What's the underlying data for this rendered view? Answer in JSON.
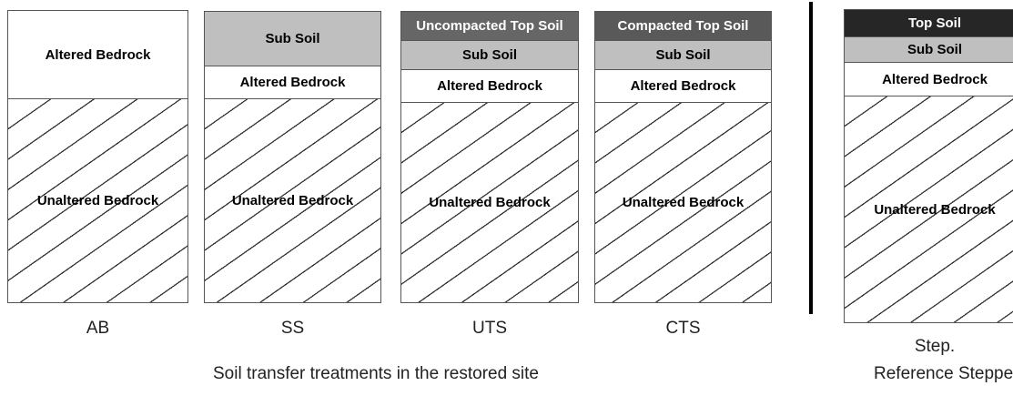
{
  "columns": [
    {
      "label": "AB",
      "layers": [
        "Altered Bedrock",
        "Unaltered Bedrock"
      ]
    },
    {
      "label": "SS",
      "layers": [
        "Sub Soil",
        "Altered Bedrock",
        "Unaltered Bedrock"
      ]
    },
    {
      "label": "UTS",
      "layers": [
        "Uncompacted Top Soil",
        "Sub Soil",
        "Altered Bedrock",
        "Unaltered Bedrock"
      ]
    },
    {
      "label": "CTS",
      "layers": [
        "Compacted Top Soil",
        "Sub Soil",
        "Altered Bedrock",
        "Unaltered Bedrock"
      ]
    },
    {
      "label": "Step.",
      "layers": [
        "Top Soil",
        "Sub Soil",
        "Altered Bedrock",
        "Unaltered Bedrock"
      ]
    }
  ],
  "captions": [
    "Soil transfer  treatments in the restored site",
    "Reference Steppe"
  ]
}
